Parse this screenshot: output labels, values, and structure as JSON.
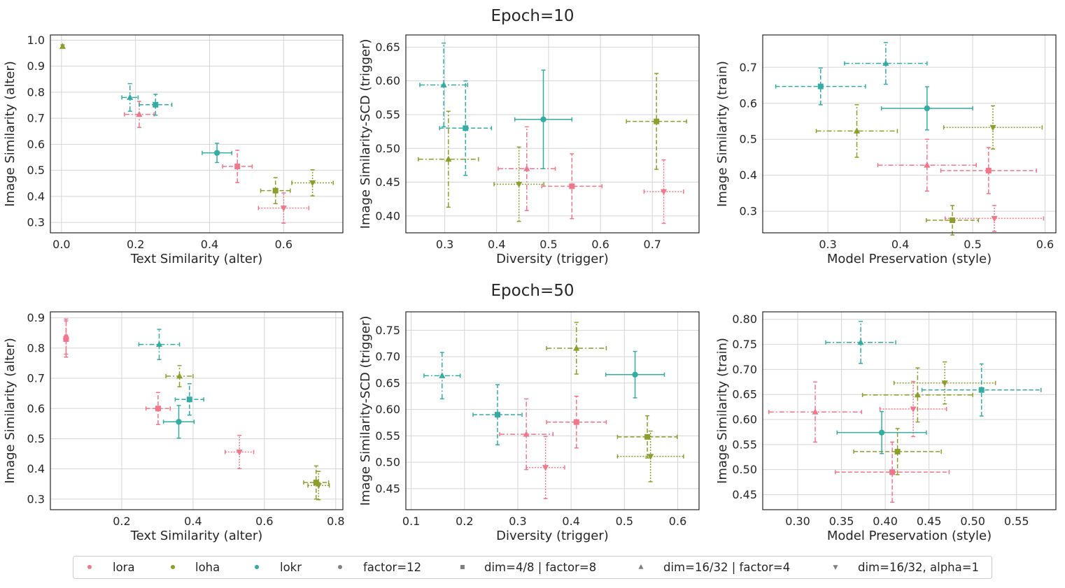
{
  "colors": {
    "lora": "#f0768a",
    "loha": "#8d9e2c",
    "lokr": "#35aca2",
    "marker_legend": "#808080"
  },
  "row_titles": [
    "Epoch=10",
    "Epoch=50"
  ],
  "legend": [
    {
      "label": "lora",
      "kind": "color",
      "color": "#f0768a",
      "marker": "circle"
    },
    {
      "label": "loha",
      "kind": "color",
      "color": "#8d9e2c",
      "marker": "circle"
    },
    {
      "label": "lokr",
      "kind": "color",
      "color": "#35aca2",
      "marker": "circle"
    },
    {
      "label": "factor=12",
      "kind": "marker",
      "color": "#808080",
      "marker": "circle"
    },
    {
      "label": "dim=4/8 | factor=8",
      "kind": "marker",
      "color": "#808080",
      "marker": "square"
    },
    {
      "label": "dim=16/32 | factor=4",
      "kind": "marker",
      "color": "#808080",
      "marker": "triangle-up"
    },
    {
      "label": "dim=16/32, alpha=1",
      "kind": "marker",
      "color": "#808080",
      "marker": "triangle-down"
    }
  ],
  "chart_data": [
    {
      "type": "scatter",
      "id": "e10-text-image",
      "xlabel": "Text Similarity (alter)",
      "ylabel": "Image Similarity (alter)",
      "xlim": [
        -0.03,
        0.76
      ],
      "ylim": [
        0.26,
        1.02
      ],
      "xticks": [
        0.0,
        0.2,
        0.4,
        0.6
      ],
      "yticks": [
        0.3,
        0.4,
        0.5,
        0.6,
        0.7,
        0.8,
        0.9,
        1.0
      ],
      "xtick_labels": [
        "0.0",
        "0.2",
        "0.4",
        "0.6"
      ],
      "ytick_labels": [
        "0.3",
        "0.4",
        "0.5",
        "0.6",
        "0.7",
        "0.8",
        "0.9",
        "1.0"
      ],
      "points": [
        {
          "algo": "lora",
          "marker": "triangle-up",
          "x": 0.21,
          "y": 0.715,
          "xerr": 0.04,
          "yerr": 0.05
        },
        {
          "algo": "lora",
          "marker": "square",
          "x": 0.475,
          "y": 0.515,
          "xerr": 0.04,
          "yerr": 0.062
        },
        {
          "algo": "lora",
          "marker": "triangle-down",
          "x": 0.6,
          "y": 0.355,
          "xerr": 0.068,
          "yerr": 0.058
        },
        {
          "algo": "loha",
          "marker": "triangle-up",
          "x": 0.003,
          "y": 0.976,
          "xerr": 0.003,
          "yerr": 0.006
        },
        {
          "algo": "loha",
          "marker": "square",
          "x": 0.578,
          "y": 0.422,
          "xerr": 0.04,
          "yerr": 0.05
        },
        {
          "algo": "loha",
          "marker": "triangle-down",
          "x": 0.678,
          "y": 0.452,
          "xerr": 0.056,
          "yerr": 0.05
        },
        {
          "algo": "lokr",
          "marker": "circle",
          "x": 0.42,
          "y": 0.567,
          "xerr": 0.04,
          "yerr": 0.037
        },
        {
          "algo": "lokr",
          "marker": "square",
          "x": 0.254,
          "y": 0.752,
          "xerr": 0.044,
          "yerr": 0.04
        },
        {
          "algo": "lokr",
          "marker": "triangle-up",
          "x": 0.185,
          "y": 0.78,
          "xerr": 0.022,
          "yerr": 0.053
        }
      ]
    },
    {
      "type": "scatter",
      "id": "e10-div-scd",
      "xlabel": "Diversity (trigger)",
      "ylabel": "Image Similarity-SCD (trigger)",
      "xlim": [
        0.225,
        0.79
      ],
      "ylim": [
        0.375,
        0.668
      ],
      "xticks": [
        0.3,
        0.4,
        0.5,
        0.6,
        0.7
      ],
      "yticks": [
        0.4,
        0.45,
        0.5,
        0.55,
        0.6,
        0.65
      ],
      "xtick_labels": [
        "0.3",
        "0.4",
        "0.5",
        "0.6",
        "0.7"
      ],
      "ytick_labels": [
        "0.40",
        "0.45",
        "0.50",
        "0.55",
        "0.60",
        "0.65"
      ],
      "points": [
        {
          "algo": "lora",
          "marker": "triangle-up",
          "x": 0.458,
          "y": 0.47,
          "xerr": 0.055,
          "yerr": 0.062
        },
        {
          "algo": "lora",
          "marker": "square",
          "x": 0.545,
          "y": 0.444,
          "xerr": 0.058,
          "yerr": 0.048
        },
        {
          "algo": "lora",
          "marker": "triangle-down",
          "x": 0.722,
          "y": 0.436,
          "xerr": 0.038,
          "yerr": 0.047
        },
        {
          "algo": "loha",
          "marker": "triangle-up",
          "x": 0.307,
          "y": 0.484,
          "xerr": 0.058,
          "yerr": 0.071
        },
        {
          "algo": "loha",
          "marker": "square",
          "x": 0.708,
          "y": 0.54,
          "xerr": 0.058,
          "yerr": 0.071
        },
        {
          "algo": "loha",
          "marker": "triangle-down",
          "x": 0.443,
          "y": 0.447,
          "xerr": 0.048,
          "yerr": 0.055
        },
        {
          "algo": "lokr",
          "marker": "circle",
          "x": 0.49,
          "y": 0.543,
          "xerr": 0.055,
          "yerr": 0.073
        },
        {
          "algo": "lokr",
          "marker": "square",
          "x": 0.34,
          "y": 0.53,
          "xerr": 0.05,
          "yerr": 0.07
        },
        {
          "algo": "lokr",
          "marker": "triangle-up",
          "x": 0.298,
          "y": 0.594,
          "xerr": 0.046,
          "yerr": 0.062
        }
      ]
    },
    {
      "type": "scatter",
      "id": "e10-pres-train",
      "xlabel": "Model Preservation (style)",
      "ylabel": "Image Similarity (train)",
      "xlim": [
        0.21,
        0.615
      ],
      "ylim": [
        0.24,
        0.79
      ],
      "xticks": [
        0.3,
        0.4,
        0.5,
        0.6
      ],
      "yticks": [
        0.3,
        0.4,
        0.5,
        0.6,
        0.7
      ],
      "xtick_labels": [
        "0.3",
        "0.4",
        "0.5",
        "0.6"
      ],
      "ytick_labels": [
        "0.3",
        "0.4",
        "0.5",
        "0.6",
        "0.7"
      ],
      "points": [
        {
          "algo": "lora",
          "marker": "triangle-up",
          "x": 0.437,
          "y": 0.428,
          "xerr": 0.068,
          "yerr": 0.072
        },
        {
          "algo": "lora",
          "marker": "square",
          "x": 0.522,
          "y": 0.413,
          "xerr": 0.066,
          "yerr": 0.064
        },
        {
          "algo": "lora",
          "marker": "triangle-down",
          "x": 0.53,
          "y": 0.28,
          "xerr": 0.068,
          "yerr": 0.036
        },
        {
          "algo": "loha",
          "marker": "triangle-up",
          "x": 0.34,
          "y": 0.523,
          "xerr": 0.056,
          "yerr": 0.073
        },
        {
          "algo": "loha",
          "marker": "square",
          "x": 0.472,
          "y": 0.275,
          "xerr": 0.036,
          "yerr": 0.041
        },
        {
          "algo": "loha",
          "marker": "triangle-down",
          "x": 0.528,
          "y": 0.533,
          "xerr": 0.068,
          "yerr": 0.06
        },
        {
          "algo": "lokr",
          "marker": "circle",
          "x": 0.437,
          "y": 0.586,
          "xerr": 0.063,
          "yerr": 0.06
        },
        {
          "algo": "lokr",
          "marker": "square",
          "x": 0.29,
          "y": 0.647,
          "xerr": 0.062,
          "yerr": 0.051
        },
        {
          "algo": "lokr",
          "marker": "triangle-up",
          "x": 0.38,
          "y": 0.711,
          "xerr": 0.057,
          "yerr": 0.058
        }
      ]
    },
    {
      "type": "scatter",
      "id": "e50-text-image",
      "xlabel": "Text Similarity (alter)",
      "ylabel": "Image Similarity (alter)",
      "xlim": [
        0.0,
        0.82
      ],
      "ylim": [
        0.265,
        0.92
      ],
      "xticks": [
        0.2,
        0.4,
        0.6,
        0.8
      ],
      "yticks": [
        0.3,
        0.4,
        0.5,
        0.6,
        0.7,
        0.8,
        0.9
      ],
      "xtick_labels": [
        "0.2",
        "0.4",
        "0.6",
        "0.8"
      ],
      "ytick_labels": [
        "0.3",
        "0.4",
        "0.5",
        "0.6",
        "0.7",
        "0.8",
        "0.9"
      ],
      "points": [
        {
          "algo": "lora",
          "marker": "triangle-up",
          "x": 0.044,
          "y": 0.838,
          "xerr": 0.004,
          "yerr": 0.058
        },
        {
          "algo": "lora",
          "marker": "square",
          "x": 0.302,
          "y": 0.6,
          "xerr": 0.034,
          "yerr": 0.053
        },
        {
          "algo": "lora",
          "marker": "triangle-down",
          "x": 0.53,
          "y": 0.456,
          "xerr": 0.04,
          "yerr": 0.055
        },
        {
          "algo": "lora",
          "marker": "square",
          "x": 0.044,
          "y": 0.83,
          "xerr": 0.004,
          "yerr": 0.06
        },
        {
          "algo": "loha",
          "marker": "triangle-up",
          "x": 0.362,
          "y": 0.707,
          "xerr": 0.038,
          "yerr": 0.035
        },
        {
          "algo": "loha",
          "marker": "square",
          "x": 0.745,
          "y": 0.355,
          "xerr": 0.035,
          "yerr": 0.055
        },
        {
          "algo": "loha",
          "marker": "triangle-down",
          "x": 0.752,
          "y": 0.345,
          "xerr": 0.03,
          "yerr": 0.047
        },
        {
          "algo": "lokr",
          "marker": "circle",
          "x": 0.36,
          "y": 0.556,
          "xerr": 0.043,
          "yerr": 0.054
        },
        {
          "algo": "lokr",
          "marker": "square",
          "x": 0.39,
          "y": 0.63,
          "xerr": 0.04,
          "yerr": 0.052
        },
        {
          "algo": "lokr",
          "marker": "triangle-up",
          "x": 0.305,
          "y": 0.812,
          "xerr": 0.057,
          "yerr": 0.05
        }
      ]
    },
    {
      "type": "scatter",
      "id": "e50-div-scd",
      "xlabel": "Diversity (trigger)",
      "ylabel": "Image Similarity-SCD (trigger)",
      "xlim": [
        0.09,
        0.64
      ],
      "ylim": [
        0.41,
        0.785
      ],
      "xticks": [
        0.1,
        0.2,
        0.3,
        0.4,
        0.5,
        0.6
      ],
      "yticks": [
        0.45,
        0.5,
        0.55,
        0.6,
        0.65,
        0.7,
        0.75
      ],
      "xtick_labels": [
        "0.1",
        "0.2",
        "0.3",
        "0.4",
        "0.5",
        "0.6"
      ],
      "ytick_labels": [
        "0.45",
        "0.50",
        "0.55",
        "0.60",
        "0.65",
        "0.70",
        "0.75"
      ],
      "points": [
        {
          "algo": "lora",
          "marker": "triangle-up",
          "x": 0.316,
          "y": 0.553,
          "xerr": 0.05,
          "yerr": 0.067
        },
        {
          "algo": "lora",
          "marker": "square",
          "x": 0.41,
          "y": 0.576,
          "xerr": 0.056,
          "yerr": 0.049
        },
        {
          "algo": "lora",
          "marker": "triangle-down",
          "x": 0.352,
          "y": 0.49,
          "xerr": 0.036,
          "yerr": 0.059
        },
        {
          "algo": "loha",
          "marker": "triangle-up",
          "x": 0.41,
          "y": 0.716,
          "xerr": 0.056,
          "yerr": 0.049
        },
        {
          "algo": "loha",
          "marker": "square",
          "x": 0.543,
          "y": 0.548,
          "xerr": 0.056,
          "yerr": 0.04
        },
        {
          "algo": "loha",
          "marker": "triangle-down",
          "x": 0.549,
          "y": 0.511,
          "xerr": 0.062,
          "yerr": 0.048
        },
        {
          "algo": "lokr",
          "marker": "circle",
          "x": 0.52,
          "y": 0.666,
          "xerr": 0.055,
          "yerr": 0.044
        },
        {
          "algo": "lokr",
          "marker": "square",
          "x": 0.262,
          "y": 0.59,
          "xerr": 0.046,
          "yerr": 0.057
        },
        {
          "algo": "lokr",
          "marker": "triangle-up",
          "x": 0.158,
          "y": 0.664,
          "xerr": 0.034,
          "yerr": 0.044
        }
      ]
    },
    {
      "type": "scatter",
      "id": "e50-pres-train",
      "xlabel": "Model Preservation (style)",
      "ylabel": "Image Similarity (train)",
      "xlim": [
        0.26,
        0.595
      ],
      "ylim": [
        0.42,
        0.815
      ],
      "xticks": [
        0.3,
        0.35,
        0.4,
        0.45,
        0.5,
        0.55
      ],
      "yticks": [
        0.45,
        0.5,
        0.55,
        0.6,
        0.65,
        0.7,
        0.75,
        0.8
      ],
      "xtick_labels": [
        "0.30",
        "0.35",
        "0.40",
        "0.45",
        "0.50",
        "0.55"
      ],
      "ytick_labels": [
        "0.45",
        "0.50",
        "0.55",
        "0.60",
        "0.65",
        "0.70",
        "0.75",
        "0.80"
      ],
      "points": [
        {
          "algo": "lora",
          "marker": "triangle-up",
          "x": 0.32,
          "y": 0.615,
          "xerr": 0.053,
          "yerr": 0.06
        },
        {
          "algo": "lora",
          "marker": "square",
          "x": 0.408,
          "y": 0.495,
          "xerr": 0.065,
          "yerr": 0.06
        },
        {
          "algo": "lora",
          "marker": "triangle-down",
          "x": 0.432,
          "y": 0.621,
          "xerr": 0.038,
          "yerr": 0.055
        },
        {
          "algo": "loha",
          "marker": "triangle-up",
          "x": 0.437,
          "y": 0.649,
          "xerr": 0.063,
          "yerr": 0.054
        },
        {
          "algo": "loha",
          "marker": "square",
          "x": 0.414,
          "y": 0.536,
          "xerr": 0.05,
          "yerr": 0.046
        },
        {
          "algo": "loha",
          "marker": "triangle-down",
          "x": 0.468,
          "y": 0.673,
          "xerr": 0.058,
          "yerr": 0.042
        },
        {
          "algo": "lokr",
          "marker": "circle",
          "x": 0.396,
          "y": 0.574,
          "xerr": 0.051,
          "yerr": 0.042
        },
        {
          "algo": "lokr",
          "marker": "square",
          "x": 0.51,
          "y": 0.659,
          "xerr": 0.068,
          "yerr": 0.052
        },
        {
          "algo": "lokr",
          "marker": "triangle-up",
          "x": 0.372,
          "y": 0.754,
          "xerr": 0.04,
          "yerr": 0.042
        }
      ]
    }
  ]
}
